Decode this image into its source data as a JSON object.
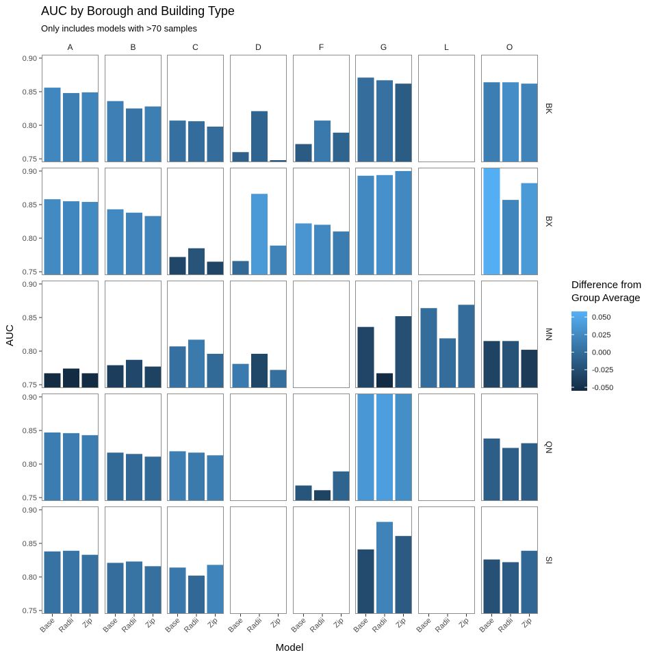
{
  "chart_data": {
    "type": "bar",
    "title": "AUC by Borough and Building Type",
    "subtitle": "Only includes models with >70 samples",
    "xlabel": "Model",
    "ylabel": "AUC",
    "ylim": [
      0.745,
      0.905
    ],
    "y_ticks": [
      0.75,
      0.8,
      0.85,
      0.9
    ],
    "y_tick_labels": [
      "0.75",
      "0.80",
      "0.85",
      "0.90"
    ],
    "categories": [
      "Base",
      "Radii",
      "Zip"
    ],
    "columns": [
      "A",
      "B",
      "C",
      "D",
      "F",
      "G",
      "L",
      "O"
    ],
    "rows": [
      "BK",
      "BX",
      "MN",
      "QN",
      "SI"
    ],
    "grid": false,
    "legend": {
      "title_lines": [
        "Difference from",
        "Group Average"
      ],
      "position": "right",
      "tick_values": [
        0.05,
        0.025,
        0,
        -0.025,
        -0.05
      ],
      "tick_labels": [
        "0.050",
        "0.025",
        "0.000",
        "-0.025",
        "-0.050"
      ],
      "range": [
        -0.055,
        0.058
      ],
      "colors": {
        "low": "#132B43",
        "high": "#56B1F7"
      }
    },
    "panels": [
      {
        "row": "BK",
        "col": "A",
        "values": [
          0.856,
          0.848,
          0.849
        ]
      },
      {
        "row": "BK",
        "col": "B",
        "values": [
          0.836,
          0.825,
          0.828
        ]
      },
      {
        "row": "BK",
        "col": "C",
        "values": [
          0.807,
          0.806,
          0.798
        ]
      },
      {
        "row": "BK",
        "col": "D",
        "values": [
          0.76,
          0.821,
          0.748
        ]
      },
      {
        "row": "BK",
        "col": "F",
        "values": [
          0.772,
          0.807,
          0.789
        ]
      },
      {
        "row": "BK",
        "col": "G",
        "values": [
          0.871,
          0.867,
          0.862
        ]
      },
      {
        "row": "BK",
        "col": "L",
        "values": []
      },
      {
        "row": "BK",
        "col": "O",
        "values": [
          0.864,
          0.864,
          0.862
        ]
      },
      {
        "row": "BX",
        "col": "A",
        "values": [
          0.858,
          0.855,
          0.854
        ]
      },
      {
        "row": "BX",
        "col": "B",
        "values": [
          0.843,
          0.838,
          0.833
        ]
      },
      {
        "row": "BX",
        "col": "C",
        "values": [
          0.772,
          0.785,
          0.765
        ]
      },
      {
        "row": "BX",
        "col": "D",
        "values": [
          0.766,
          0.866,
          0.789
        ]
      },
      {
        "row": "BX",
        "col": "F",
        "values": [
          0.822,
          0.82,
          0.81
        ]
      },
      {
        "row": "BX",
        "col": "G",
        "values": [
          0.893,
          0.894,
          0.9
        ]
      },
      {
        "row": "BX",
        "col": "L",
        "values": []
      },
      {
        "row": "BX",
        "col": "O",
        "values": [
          0.905,
          0.857,
          0.882
        ]
      },
      {
        "row": "MN",
        "col": "A",
        "values": [
          0.767,
          0.774,
          0.767
        ]
      },
      {
        "row": "MN",
        "col": "B",
        "values": [
          0.779,
          0.787,
          0.777
        ]
      },
      {
        "row": "MN",
        "col": "C",
        "values": [
          0.807,
          0.817,
          0.796
        ]
      },
      {
        "row": "MN",
        "col": "D",
        "values": [
          0.781,
          0.796,
          0.772
        ]
      },
      {
        "row": "MN",
        "col": "F",
        "values": []
      },
      {
        "row": "MN",
        "col": "G",
        "values": [
          0.836,
          0.767,
          0.852
        ]
      },
      {
        "row": "MN",
        "col": "L",
        "values": [
          0.864,
          0.819,
          0.869
        ]
      },
      {
        "row": "MN",
        "col": "O",
        "values": [
          0.815,
          0.815,
          0.802
        ]
      },
      {
        "row": "QN",
        "col": "A",
        "values": [
          0.847,
          0.846,
          0.843
        ]
      },
      {
        "row": "QN",
        "col": "B",
        "values": [
          0.817,
          0.815,
          0.811
        ]
      },
      {
        "row": "QN",
        "col": "C",
        "values": [
          0.819,
          0.817,
          0.813
        ]
      },
      {
        "row": "QN",
        "col": "D",
        "values": []
      },
      {
        "row": "QN",
        "col": "F",
        "values": [
          0.768,
          0.761,
          0.789
        ]
      },
      {
        "row": "QN",
        "col": "G",
        "values": [
          0.905,
          0.905,
          0.905
        ]
      },
      {
        "row": "QN",
        "col": "L",
        "values": []
      },
      {
        "row": "QN",
        "col": "O",
        "values": [
          0.838,
          0.824,
          0.831
        ]
      },
      {
        "row": "SI",
        "col": "A",
        "values": [
          0.838,
          0.839,
          0.833
        ]
      },
      {
        "row": "SI",
        "col": "B",
        "values": [
          0.821,
          0.823,
          0.816
        ]
      },
      {
        "row": "SI",
        "col": "C",
        "values": [
          0.814,
          0.802,
          0.818
        ]
      },
      {
        "row": "SI",
        "col": "D",
        "values": []
      },
      {
        "row": "SI",
        "col": "F",
        "values": []
      },
      {
        "row": "SI",
        "col": "G",
        "values": [
          0.841,
          0.882,
          0.861
        ]
      },
      {
        "row": "SI",
        "col": "L",
        "values": []
      },
      {
        "row": "SI",
        "col": "O",
        "values": [
          0.826,
          0.822,
          0.839
        ]
      }
    ]
  }
}
